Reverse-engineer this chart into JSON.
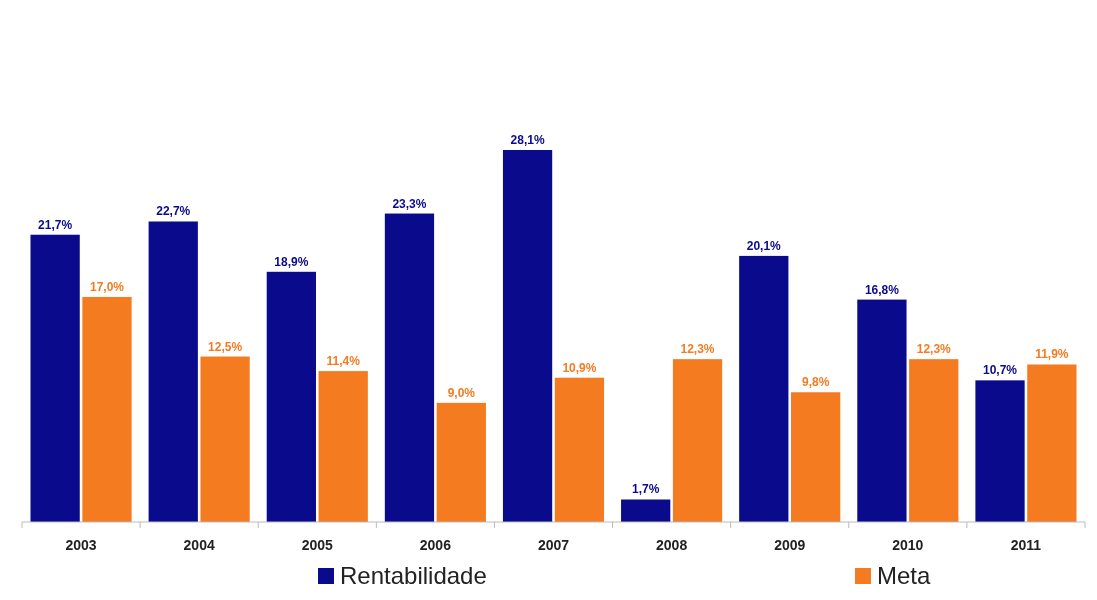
{
  "chart_data": {
    "type": "bar",
    "categories": [
      "2003",
      "2004",
      "2005",
      "2006",
      "2007",
      "2008",
      "2009",
      "2010",
      "2011"
    ],
    "series": [
      {
        "name": "Rentabilidade",
        "color": "#0a0a8c",
        "values": [
          21.7,
          22.7,
          18.9,
          23.3,
          28.1,
          1.7,
          20.1,
          16.8,
          10.7
        ],
        "value_labels": [
          "21,7%",
          "22,7%",
          "18,9%",
          "23,3%",
          "28,1%",
          "1,7%",
          "20,1%",
          "16,8%",
          "10,7%"
        ]
      },
      {
        "name": "Meta",
        "color": "#f47b20",
        "values": [
          17.0,
          12.5,
          11.4,
          9.0,
          10.9,
          12.3,
          9.8,
          12.3,
          11.9
        ],
        "value_labels": [
          "17,0%",
          "12,5%",
          "11,4%",
          "9,0%",
          "10,9%",
          "12,3%",
          "9,8%",
          "12,3%",
          "11,9%"
        ]
      }
    ],
    "legend": "bottom"
  }
}
